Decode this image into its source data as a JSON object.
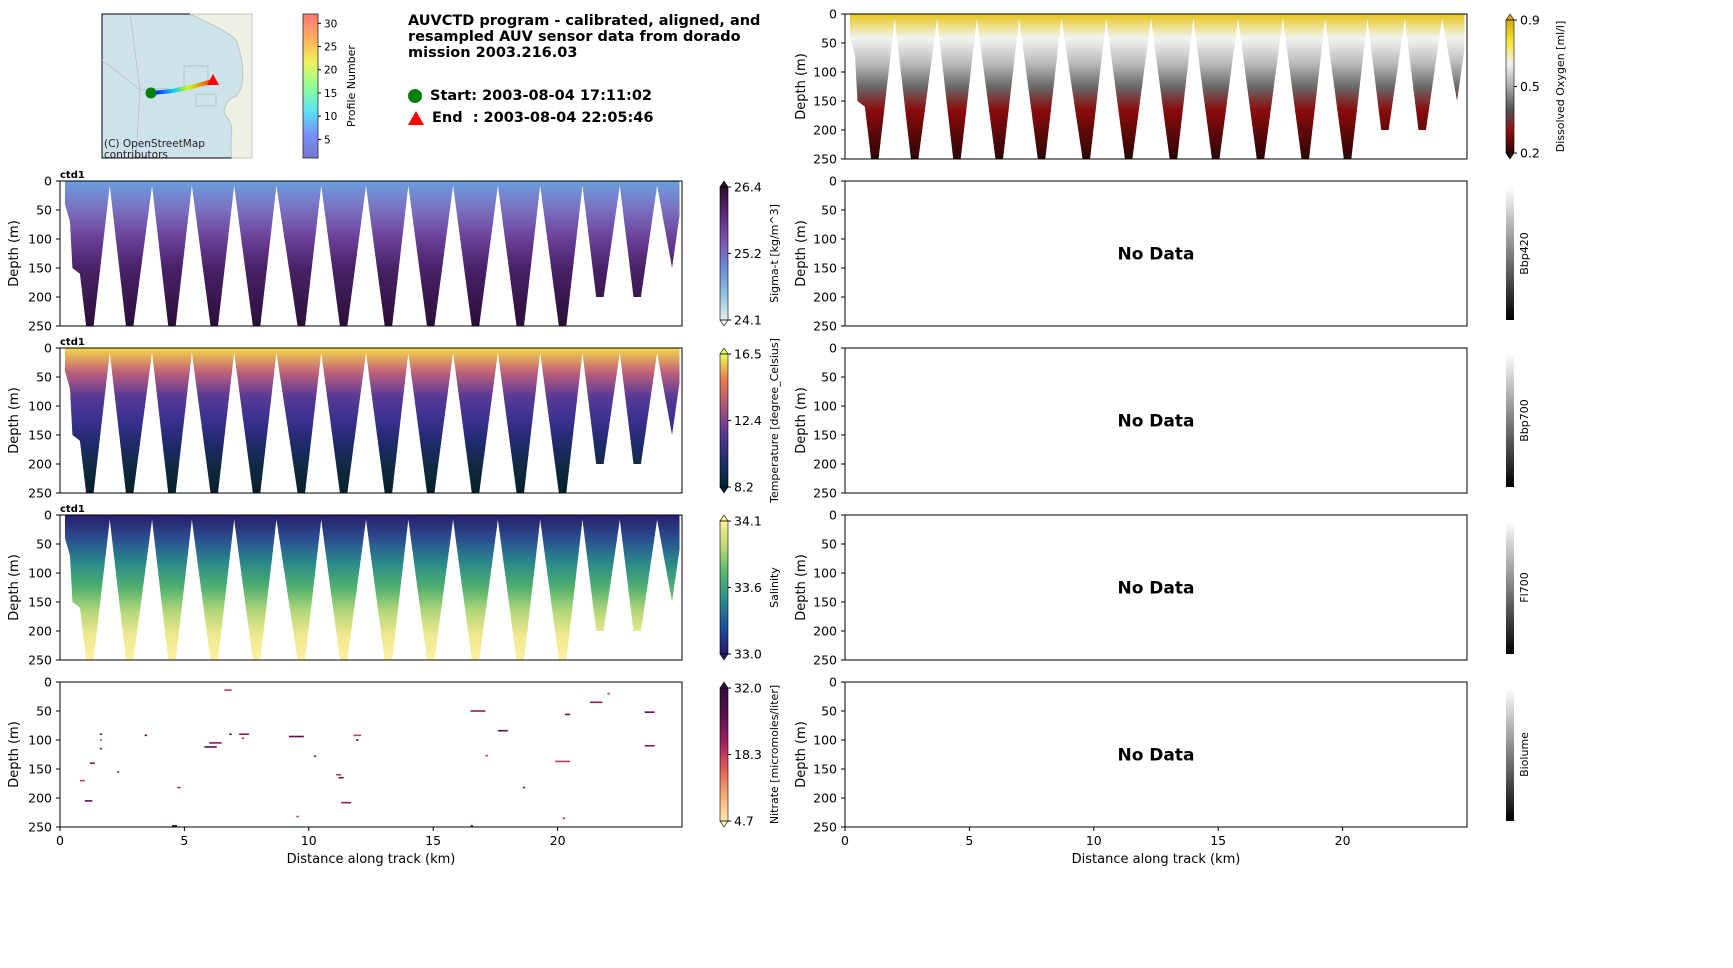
{
  "header": {
    "title": "AUVCTD program - calibrated, aligned, and resampled AUV sensor data from dorado mission 2003.216.03",
    "start_label": "Start: 2003-08-04 17:11:02",
    "end_label": "End  : 2003-08-04 22:05:46",
    "map_attribution": "(C) OpenStreetMap contributors",
    "colors": {
      "start": "#008000",
      "end": "#ff0000"
    }
  },
  "profile_colorbar": {
    "label": "Profile Number",
    "ticks": [
      "5",
      "10",
      "15",
      "20",
      "25",
      "30"
    ],
    "range": [
      1,
      32
    ]
  },
  "chart_data": {
    "type": "heatmap",
    "xlabel": "Distance along track (km)",
    "ylabel": "Depth (m)",
    "xlim": [
      0,
      25
    ],
    "ylim": [
      250,
      0
    ],
    "xticks": [
      "0",
      "5",
      "10",
      "15",
      "20"
    ],
    "yticks": [
      "0",
      "50",
      "100",
      "150",
      "200",
      "250"
    ],
    "no_data_label": "No Data",
    "dive_bottoms_km": [
      1.2,
      2.8,
      4.5,
      6.2,
      7.9,
      9.7,
      11.4,
      13.2,
      14.9,
      16.7,
      18.5,
      20.2,
      21.7,
      23.2
    ],
    "dive_bottom_depths_m": [
      250,
      250,
      250,
      250,
      250,
      250,
      250,
      250,
      250,
      250,
      250,
      250,
      200,
      200
    ],
    "apex_km": [
      2.0,
      3.7,
      5.3,
      7.0,
      8.7,
      10.5,
      12.3,
      14.0,
      15.8,
      17.6,
      19.3,
      21.0,
      22.5,
      24.0
    ],
    "panels": [
      {
        "id": "oxygen",
        "tag": "",
        "cbar_label": "Dissolved Oxygen [ml/l]",
        "ticks": [
          "0.9",
          "0.5",
          "0.2"
        ],
        "no_data": false,
        "data_stops": [
          "#e6c619",
          "#f3f3f0",
          "#bdbdbd",
          "#6a6a6a",
          "#8b0a0a",
          "#5a0808",
          "#2a0404"
        ],
        "cbar_stops": [
          "#2a0404",
          "#8b1010",
          "#555555",
          "#aaaaaa",
          "#f0f0f0",
          "#f5e83a",
          "#d4a90c"
        ]
      },
      {
        "id": "sigma",
        "tag": "ctd1",
        "cbar_label": "Sigma-t [kg/m^3]",
        "ticks": [
          "26.4",
          "25.2",
          "24.1"
        ],
        "no_data": false,
        "data_stops": [
          "#6a9ee0",
          "#7c6fc0",
          "#6b3f96",
          "#4a2168",
          "#3a1850",
          "#2b0f3a"
        ],
        "cbar_stops": [
          "#e6f0f0",
          "#92c0de",
          "#6b8ad8",
          "#7b52b0",
          "#5a2a78",
          "#2b0f2b"
        ]
      },
      {
        "id": "temp",
        "tag": "ctd1",
        "cbar_label": "Temperature [degree_Celsius]",
        "ticks": [
          "16.5",
          "12.4",
          "8.2"
        ],
        "no_data": false,
        "data_stops": [
          "#f5d84a",
          "#c0607a",
          "#5a3a94",
          "#3a3090",
          "#1e2a6a",
          "#0f2a40",
          "#06202a"
        ],
        "cbar_stops": [
          "#04232f",
          "#1e2f6f",
          "#5b3894",
          "#a8527a",
          "#eb7a4f",
          "#e8fa5b"
        ]
      },
      {
        "id": "salinity",
        "tag": "ctd1",
        "cbar_label": "Salinity",
        "ticks": [
          "34.1",
          "33.6",
          "33.0"
        ],
        "no_data": false,
        "data_stops": [
          "#291c6e",
          "#2a5090",
          "#2a8a8a",
          "#50b070",
          "#b4d878",
          "#f0e890",
          "#fbf0a0"
        ],
        "cbar_stops": [
          "#29186b",
          "#1c4f9e",
          "#2a8a8a",
          "#50b670",
          "#b8d86e",
          "#fdee99"
        ]
      },
      {
        "id": "nitrate",
        "tag": "",
        "cbar_label": "Nitrate [micromoles/liter]",
        "ticks": [
          "32.0",
          "18.3",
          "4.7"
        ],
        "no_data": false,
        "sparse": true,
        "cbar_stops": [
          "#fdedb0",
          "#f5a870",
          "#e05a5a",
          "#a02060",
          "#5a1050",
          "#2f0f3e"
        ],
        "segments": [
          [
            1.0,
            205,
            1.3
          ],
          [
            1.6,
            90,
            1.7
          ],
          [
            1.6,
            100,
            1.65
          ],
          [
            1.6,
            115,
            1.65
          ],
          [
            1.2,
            140,
            1.4
          ],
          [
            0.8,
            170,
            1.0
          ],
          [
            3.4,
            92,
            3.5
          ],
          [
            2.3,
            155,
            2.35
          ],
          [
            4.7,
            182,
            4.85
          ],
          [
            5.8,
            112,
            6.3
          ],
          [
            6.0,
            105,
            6.5
          ],
          [
            6.6,
            14,
            6.9
          ],
          [
            6.8,
            90,
            6.9
          ],
          [
            7.2,
            90,
            7.6
          ],
          [
            7.3,
            97,
            7.4
          ],
          [
            9.2,
            94,
            9.8
          ],
          [
            10.2,
            128,
            10.3
          ],
          [
            11.1,
            160,
            11.3
          ],
          [
            11.2,
            165,
            11.4
          ],
          [
            11.3,
            208,
            11.7
          ],
          [
            11.8,
            92,
            12.1
          ],
          [
            11.9,
            100,
            12.0
          ],
          [
            16.5,
            50,
            17.1
          ],
          [
            17.1,
            127,
            17.2
          ],
          [
            17.6,
            84,
            18.0
          ],
          [
            18.6,
            182,
            18.7
          ],
          [
            19.9,
            137,
            20.5
          ],
          [
            20.3,
            56,
            20.5
          ],
          [
            21.3,
            35,
            21.8
          ],
          [
            22.0,
            20,
            22.1
          ],
          [
            23.5,
            52,
            23.9
          ],
          [
            23.5,
            110,
            23.9
          ],
          [
            20.2,
            235,
            20.3
          ],
          [
            4.5,
            248,
            4.7
          ],
          [
            16.5,
            248,
            16.6
          ],
          [
            9.5,
            232,
            9.6
          ]
        ]
      },
      {
        "id": "bbp420",
        "tag": "",
        "cbar_label": "Bbp420",
        "ticks": [],
        "no_data": true,
        "cbar_stops": [
          "#000000",
          "#ffffff"
        ]
      },
      {
        "id": "bbp700",
        "tag": "",
        "cbar_label": "Bbp700",
        "ticks": [],
        "no_data": true,
        "cbar_stops": [
          "#000000",
          "#ffffff"
        ]
      },
      {
        "id": "fl700",
        "tag": "",
        "cbar_label": "Fl700",
        "ticks": [],
        "no_data": true,
        "cbar_stops": [
          "#000000",
          "#ffffff"
        ]
      },
      {
        "id": "biolume",
        "tag": "",
        "cbar_label": "Biolume",
        "ticks": [],
        "no_data": true,
        "cbar_stops": [
          "#000000",
          "#ffffff"
        ]
      }
    ]
  }
}
